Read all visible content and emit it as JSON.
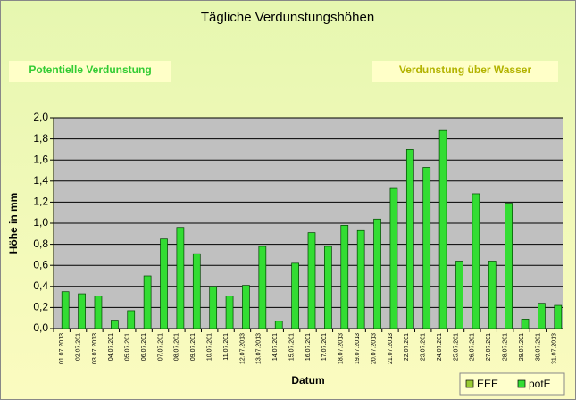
{
  "chart_data": {
    "type": "bar",
    "title": "Tägliche Verdunstungshöhen",
    "annotations": [
      "Potentielle Verdunstung",
      "Verdunstung über Wasser"
    ],
    "x_label": "Datum",
    "y_label": "Höhe in mm",
    "categories": [
      "01.07.2013",
      "02.07.201",
      "03.07.2013",
      "04.07.201",
      "05.07.201",
      "06.07.201",
      "07.07.201",
      "08.07.201",
      "09.07.201",
      "10.07.201",
      "11.07.201",
      "12.07.2013",
      "13.07.2013",
      "14.07.201",
      "15.07.201",
      "16.07.201",
      "17.07.201",
      "18.07.2013",
      "19.07.2013",
      "20.07.2013",
      "21.07.2013",
      "22.07.201",
      "23.07.201",
      "24.07.201",
      "25.07.201",
      "26.07.201",
      "27.07.201",
      "28.07.201",
      "29.07.201",
      "30.07.201",
      "31.07.2013"
    ],
    "series": [
      {
        "name": "EEE",
        "color": "#99cc33",
        "values": [
          null,
          null,
          null,
          null,
          null,
          null,
          null,
          null,
          null,
          null,
          null,
          null,
          null,
          null,
          null,
          null,
          null,
          null,
          null,
          null,
          null,
          null,
          null,
          null,
          null,
          null,
          null,
          null,
          null,
          null,
          null
        ]
      },
      {
        "name": "potE",
        "color": "#33dd33",
        "values": [
          0.35,
          0.33,
          0.31,
          0.08,
          0.17,
          0.5,
          0.85,
          0.96,
          0.71,
          0.4,
          0.31,
          0.41,
          0.78,
          0.07,
          0.62,
          0.91,
          0.78,
          0.98,
          0.93,
          1.04,
          1.33,
          1.7,
          1.53,
          1.88,
          0.64,
          1.28,
          0.64,
          1.19,
          0.09,
          0.24,
          0.22
        ]
      }
    ],
    "ylim": [
      0,
      2
    ],
    "yticks": [
      {
        "value": 0,
        "label": "0,0"
      },
      {
        "value": 0.2,
        "label": "0,2"
      },
      {
        "value": 0.4,
        "label": "0,4"
      },
      {
        "value": 0.6,
        "label": "0,6"
      },
      {
        "value": 0.8,
        "label": "0,8"
      },
      {
        "value": 1,
        "label": "1,0"
      },
      {
        "value": 1.2,
        "label": "1,2"
      },
      {
        "value": 1.4,
        "label": "1,4"
      },
      {
        "value": 1.6,
        "label": "1,6"
      },
      {
        "value": 1.8,
        "label": "1,8"
      },
      {
        "value": 2,
        "label": "2,0"
      }
    ],
    "grid": true,
    "legend": "bottom-right"
  }
}
